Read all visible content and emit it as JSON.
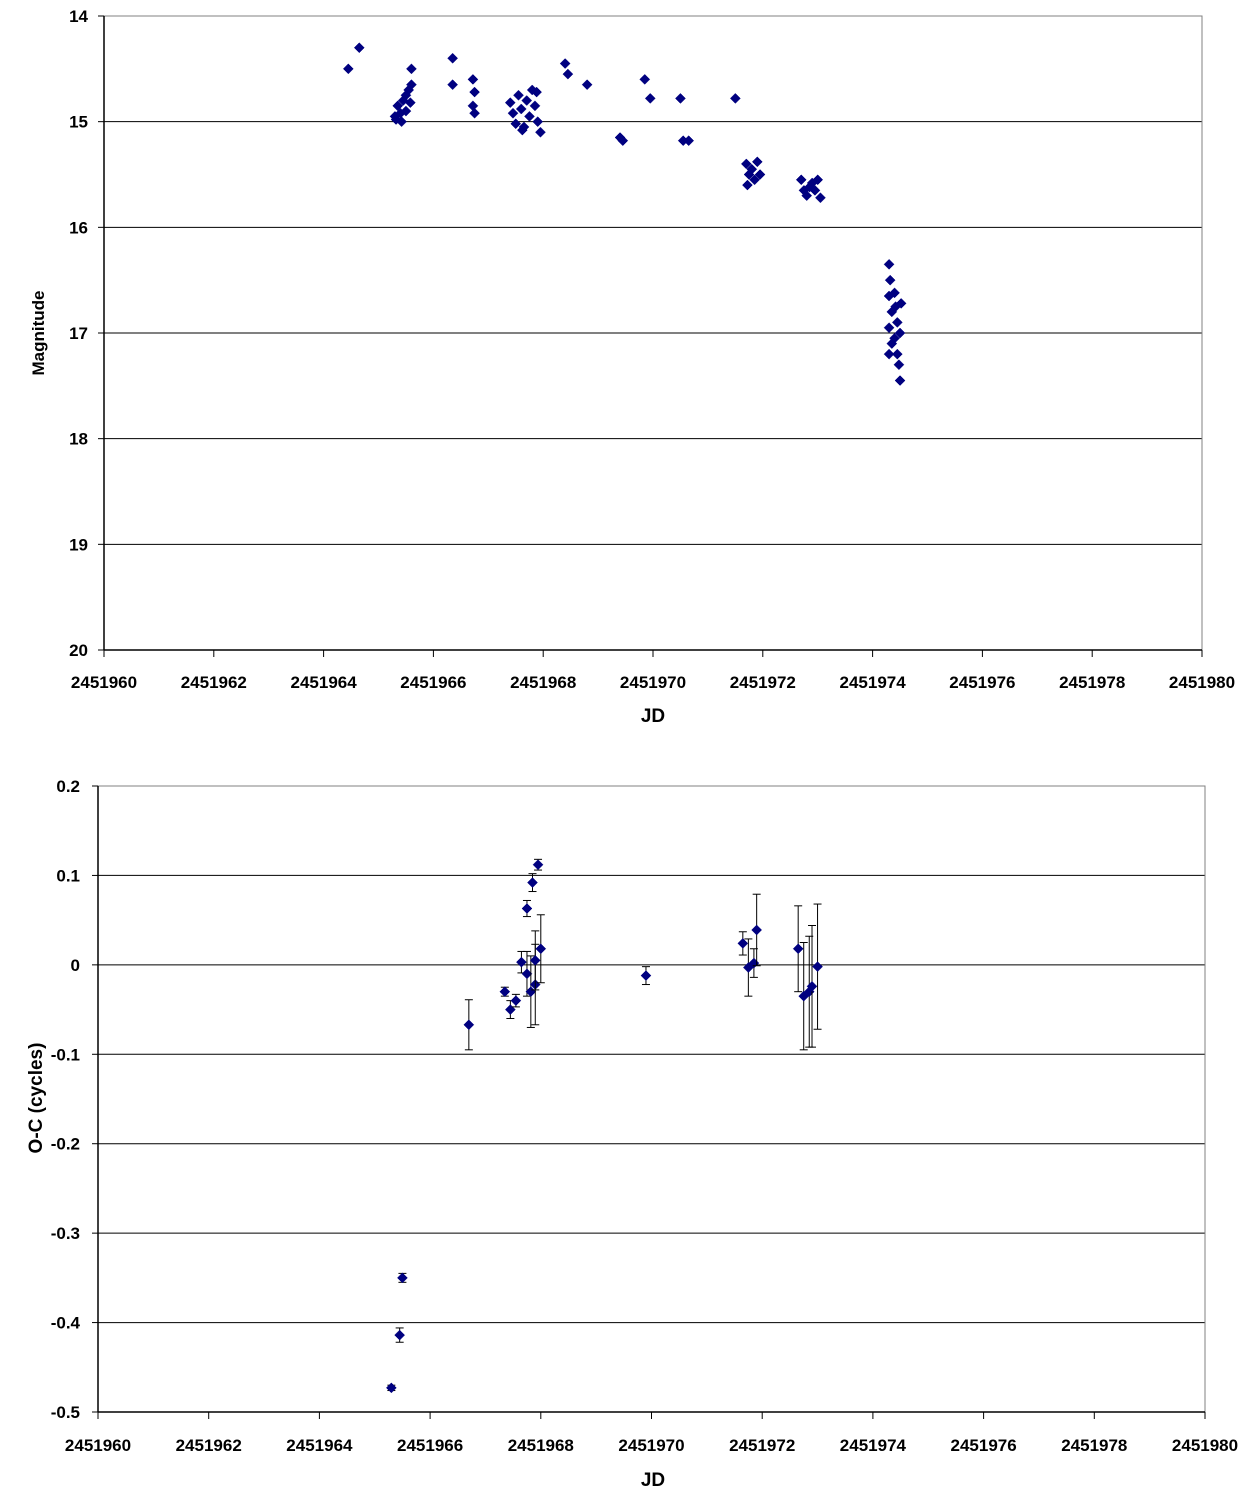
{
  "chart_data": [
    {
      "type": "scatter",
      "xlabel": "JD",
      "ylabel": "Magnitude",
      "xlim": [
        2451960,
        2451980
      ],
      "ylim": [
        14,
        20
      ],
      "y_inverted": true,
      "x_ticks": [
        "2451960",
        "2451962",
        "2451964",
        "2451966",
        "2451968",
        "2451970",
        "2451972",
        "2451974",
        "2451976",
        "2451978",
        "2451980"
      ],
      "y_ticks": [
        "14",
        "15",
        "16",
        "17",
        "18",
        "19",
        "20"
      ],
      "grid": "horizontal",
      "marker_color": "#000080",
      "points": [
        [
          2451964.45,
          14.5
        ],
        [
          2451964.65,
          14.3
        ],
        [
          2451966.35,
          14.4
        ],
        [
          2451966.35,
          14.65
        ],
        [
          2451968.4,
          14.45
        ],
        [
          2451968.45,
          14.55
        ],
        [
          2451968.8,
          14.65
        ],
        [
          2451969.85,
          14.6
        ],
        [
          2451969.95,
          14.78
        ],
        [
          2451970.5,
          14.78
        ],
        [
          2451971.5,
          14.78
        ],
        [
          2451965.3,
          14.95
        ],
        [
          2451965.35,
          14.85
        ],
        [
          2451965.4,
          14.92
        ],
        [
          2451965.45,
          14.8
        ],
        [
          2451965.5,
          14.75
        ],
        [
          2451965.55,
          14.7
        ],
        [
          2451965.6,
          14.65
        ],
        [
          2451965.6,
          14.5
        ],
        [
          2451965.32,
          14.98
        ],
        [
          2451965.42,
          15.0
        ],
        [
          2451965.5,
          14.9
        ],
        [
          2451965.58,
          14.82
        ],
        [
          2451966.72,
          14.6
        ],
        [
          2451966.75,
          14.72
        ],
        [
          2451966.72,
          14.85
        ],
        [
          2451966.75,
          14.92
        ],
        [
          2451967.4,
          14.82
        ],
        [
          2451967.45,
          14.92
        ],
        [
          2451967.5,
          15.02
        ],
        [
          2451967.55,
          14.75
        ],
        [
          2451967.6,
          14.88
        ],
        [
          2451967.65,
          15.05
        ],
        [
          2451967.7,
          14.8
        ],
        [
          2451967.75,
          14.95
        ],
        [
          2451967.8,
          14.7
        ],
        [
          2451967.85,
          14.85
        ],
        [
          2451967.9,
          15.0
        ],
        [
          2451967.95,
          15.1
        ],
        [
          2451967.88,
          14.72
        ],
        [
          2451967.62,
          15.08
        ],
        [
          2451969.4,
          15.15
        ],
        [
          2451969.45,
          15.18
        ],
        [
          2451970.55,
          15.18
        ],
        [
          2451970.65,
          15.18
        ],
        [
          2451971.7,
          15.4
        ],
        [
          2451971.75,
          15.5
        ],
        [
          2451971.8,
          15.45
        ],
        [
          2451971.85,
          15.55
        ],
        [
          2451971.9,
          15.38
        ],
        [
          2451971.95,
          15.5
        ],
        [
          2451971.72,
          15.6
        ],
        [
          2451972.7,
          15.55
        ],
        [
          2451972.75,
          15.65
        ],
        [
          2451972.8,
          15.7
        ],
        [
          2451972.9,
          15.58
        ],
        [
          2451972.95,
          15.65
        ],
        [
          2451973.0,
          15.55
        ],
        [
          2451973.05,
          15.72
        ],
        [
          2451972.85,
          15.62
        ],
        [
          2451974.3,
          16.35
        ],
        [
          2451974.32,
          16.5
        ],
        [
          2451974.3,
          16.65
        ],
        [
          2451974.35,
          16.8
        ],
        [
          2451974.3,
          16.95
        ],
        [
          2451974.35,
          17.1
        ],
        [
          2451974.3,
          17.2
        ],
        [
          2451974.4,
          16.62
        ],
        [
          2451974.42,
          16.75
        ],
        [
          2451974.45,
          16.9
        ],
        [
          2451974.4,
          17.05
        ],
        [
          2451974.45,
          17.2
        ],
        [
          2451974.48,
          17.3
        ],
        [
          2451974.5,
          17.45
        ],
        [
          2451974.5,
          17.0
        ],
        [
          2451974.52,
          16.72
        ]
      ]
    },
    {
      "type": "scatter",
      "xlabel": "JD",
      "ylabel": "O-C (cycles)",
      "xlim": [
        2451960,
        2451980
      ],
      "ylim": [
        -0.5,
        0.2
      ],
      "x_ticks": [
        "2451960",
        "2451962",
        "2451964",
        "2451966",
        "2451968",
        "2451970",
        "2451972",
        "2451974",
        "2451976",
        "2451978",
        "2451980"
      ],
      "y_ticks": [
        "0.2",
        "0.1",
        "0",
        "-0.1",
        "-0.2",
        "-0.3",
        "-0.4",
        "-0.5"
      ],
      "grid": "horizontal",
      "marker_color": "#000080",
      "points": [
        {
          "x": 2451965.3,
          "y": -0.473,
          "err": 0.003
        },
        {
          "x": 2451965.45,
          "y": -0.414,
          "err": 0.008
        },
        {
          "x": 2451965.5,
          "y": -0.35,
          "err": 0.005
        },
        {
          "x": 2451966.7,
          "y": -0.067,
          "err": 0.028
        },
        {
          "x": 2451967.35,
          "y": -0.03,
          "err": 0.005
        },
        {
          "x": 2451967.45,
          "y": -0.05,
          "err": 0.01
        },
        {
          "x": 2451967.55,
          "y": -0.04,
          "err": 0.007
        },
        {
          "x": 2451967.65,
          "y": 0.003,
          "err": 0.012
        },
        {
          "x": 2451967.75,
          "y": 0.063,
          "err": 0.009
        },
        {
          "x": 2451967.75,
          "y": -0.01,
          "err": 0.025
        },
        {
          "x": 2451967.82,
          "y": -0.03,
          "err": 0.04
        },
        {
          "x": 2451967.85,
          "y": 0.092,
          "err": 0.01
        },
        {
          "x": 2451967.9,
          "y": -0.022,
          "err": 0.045
        },
        {
          "x": 2451967.9,
          "y": 0.005,
          "err": 0.033
        },
        {
          "x": 2451967.95,
          "y": 0.112,
          "err": 0.006
        },
        {
          "x": 2451968.0,
          "y": 0.018,
          "err": 0.038
        },
        {
          "x": 2451969.9,
          "y": -0.012,
          "err": 0.01
        },
        {
          "x": 2451971.65,
          "y": 0.024,
          "err": 0.013
        },
        {
          "x": 2451971.75,
          "y": -0.003,
          "err": 0.032
        },
        {
          "x": 2451971.85,
          "y": 0.002,
          "err": 0.016
        },
        {
          "x": 2451971.9,
          "y": 0.039,
          "err": 0.04
        },
        {
          "x": 2451972.65,
          "y": 0.018,
          "err": 0.048
        },
        {
          "x": 2451972.75,
          "y": -0.035,
          "err": 0.06
        },
        {
          "x": 2451972.85,
          "y": -0.03,
          "err": 0.062
        },
        {
          "x": 2451972.9,
          "y": -0.024,
          "err": 0.068
        },
        {
          "x": 2451973.0,
          "y": -0.002,
          "err": 0.07
        }
      ]
    }
  ]
}
